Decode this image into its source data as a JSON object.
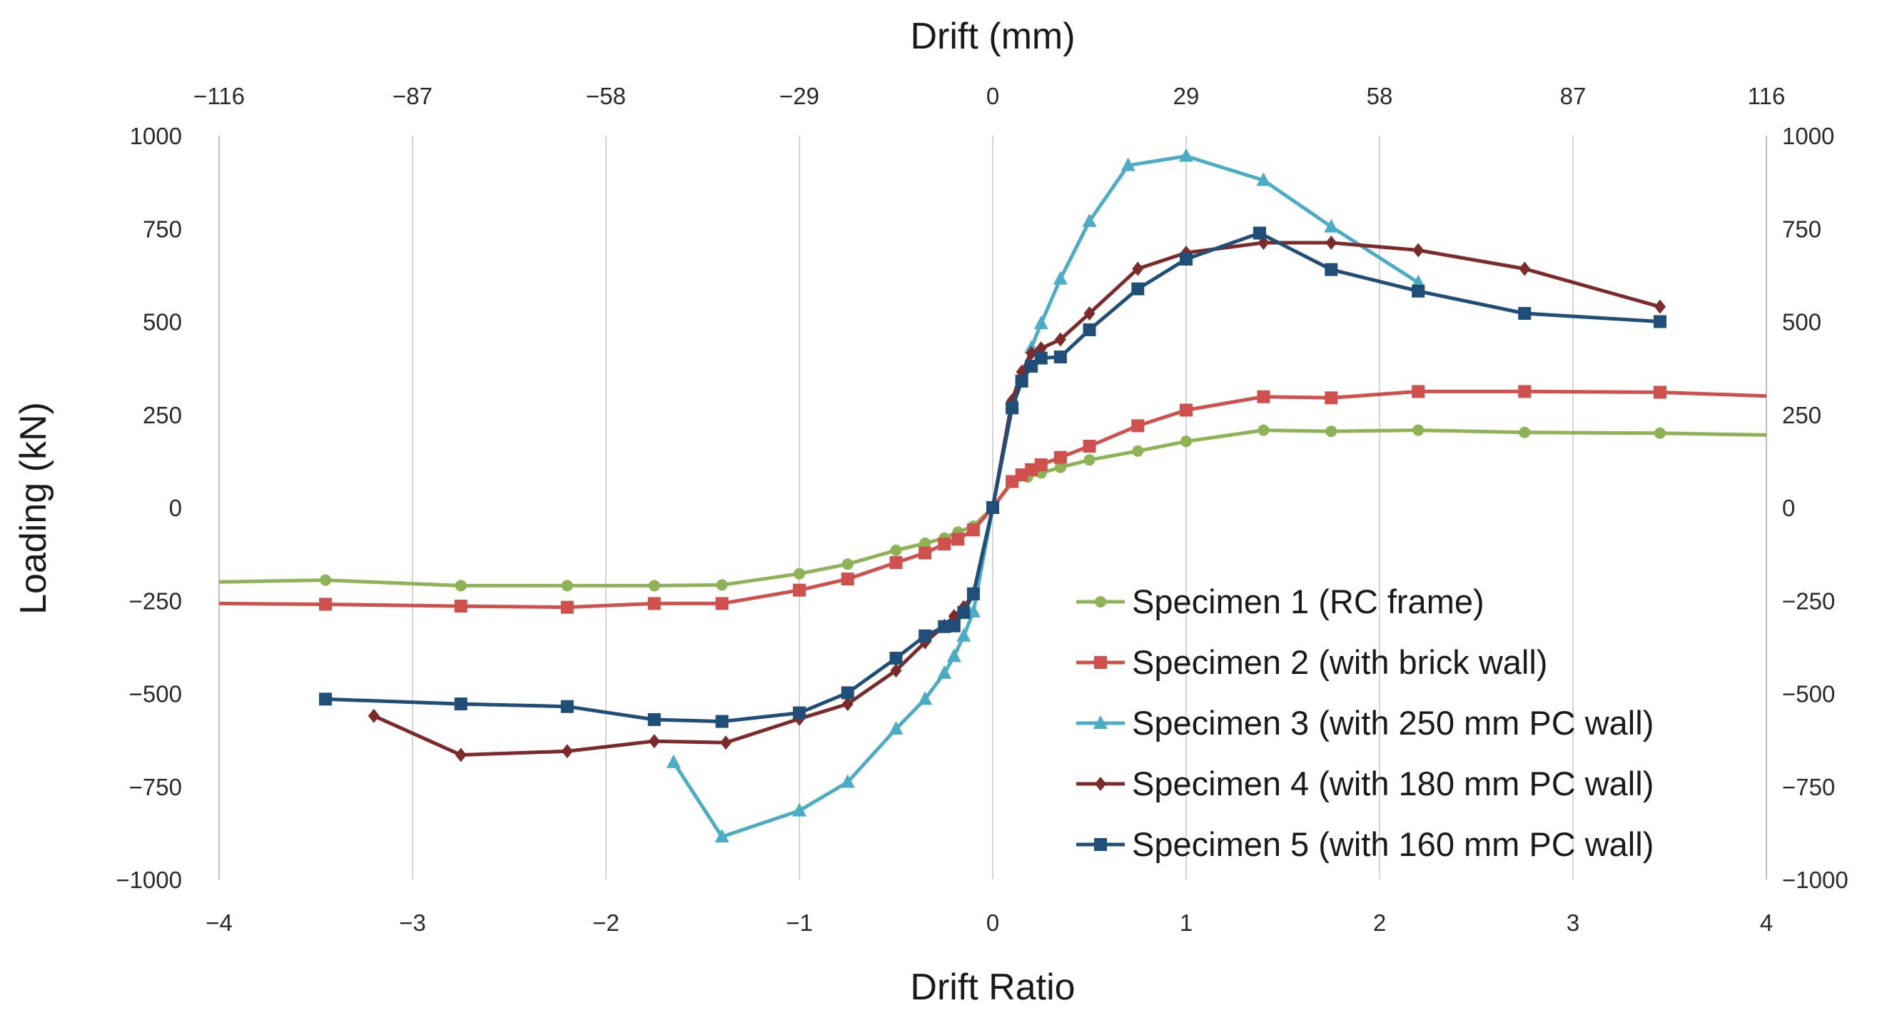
{
  "chart_data": {
    "type": "line",
    "title": "",
    "xlabel": "Drift Ratio",
    "ylabel": "Loading (kN)",
    "x2label": "Drift (mm)",
    "xlim": [
      -4,
      4
    ],
    "ylim": [
      -1000,
      1000
    ],
    "x_ticks": [
      -4,
      -3,
      -2,
      -1,
      0,
      1,
      2,
      3,
      4
    ],
    "x_tick_labels": [
      "−4",
      "−3",
      "−2",
      "−1",
      "0",
      "1",
      "2",
      "3",
      "4"
    ],
    "y_ticks": [
      1000,
      750,
      500,
      250,
      0,
      -250,
      -500,
      -750,
      -1000
    ],
    "y_tick_labels": [
      "1000",
      "750",
      "500",
      "250",
      "0",
      "−250",
      "−500",
      "−750",
      "−1000"
    ],
    "x2_ticks": [
      -116,
      -87,
      -58,
      -29,
      0,
      29,
      58,
      87,
      116
    ],
    "x2_tick_labels": [
      "−116",
      "−87",
      "−58",
      "−29",
      "0",
      "29",
      "58",
      "87",
      "116"
    ],
    "grid": "vertical",
    "legend_position": "bottom-right",
    "series": [
      {
        "name": "Specimen 1 (RC frame)",
        "color": "#8DB356",
        "marker": "circle",
        "show_markers": true,
        "x": [
          -4.0,
          -3.45,
          -2.75,
          -2.2,
          -1.75,
          -1.4,
          -1.0,
          -0.75,
          -0.5,
          -0.35,
          -0.25,
          -0.18,
          -0.1,
          0.0,
          0.1,
          0.18,
          0.25,
          0.35,
          0.5,
          0.75,
          1.0,
          1.4,
          1.75,
          2.2,
          2.75,
          3.45,
          4.0
        ],
        "y": [
          -200,
          -195,
          -210,
          -210,
          -210,
          -208,
          -178,
          -152,
          -115,
          -96,
          -82,
          -66,
          -50,
          0,
          68,
          82,
          93,
          108,
          128,
          152,
          178,
          208,
          205,
          208,
          202,
          200,
          195
        ]
      },
      {
        "name": "Specimen 2 (with brick wall)",
        "color": "#D0504D",
        "marker": "square",
        "show_markers": true,
        "x": [
          -4.0,
          -3.45,
          -2.75,
          -2.2,
          -1.75,
          -1.4,
          -1.0,
          -0.75,
          -0.5,
          -0.35,
          -0.25,
          -0.18,
          -0.1,
          0.0,
          0.1,
          0.15,
          0.2,
          0.25,
          0.35,
          0.5,
          0.75,
          1.0,
          1.4,
          1.75,
          2.2,
          2.75,
          3.45,
          4.0
        ],
        "y": [
          -258,
          -260,
          -265,
          -268,
          -258,
          -258,
          -222,
          -192,
          -148,
          -122,
          -98,
          -85,
          -60,
          0,
          70,
          88,
          102,
          115,
          135,
          165,
          220,
          262,
          298,
          295,
          312,
          312,
          310,
          300
        ]
      },
      {
        "name": "Specimen 3 (with 250 mm PC wall)",
        "color": "#4BACC6",
        "marker": "triangle",
        "show_markers": true,
        "x": [
          -1.65,
          -1.4,
          -1.0,
          -0.75,
          -0.5,
          -0.35,
          -0.25,
          -0.2,
          -0.15,
          -0.1,
          0.0,
          0.1,
          0.15,
          0.2,
          0.25,
          0.35,
          0.5,
          0.7,
          1.0,
          1.4,
          1.75,
          2.2
        ],
        "y": [
          -685,
          -885,
          -815,
          -738,
          -595,
          -515,
          -445,
          -400,
          -345,
          -280,
          0,
          280,
          350,
          430,
          495,
          615,
          770,
          920,
          945,
          880,
          755,
          605
        ]
      },
      {
        "name": "Specimen 4 (with 180 mm PC wall)",
        "color": "#7D2A2A",
        "marker": "diamond",
        "show_markers": true,
        "x": [
          -3.2,
          -2.75,
          -2.2,
          -1.75,
          -1.38,
          -1.0,
          -0.75,
          -0.5,
          -0.35,
          -0.25,
          -0.2,
          -0.15,
          -0.1,
          0.0,
          0.1,
          0.15,
          0.2,
          0.25,
          0.35,
          0.5,
          0.75,
          1.0,
          1.4,
          1.75,
          2.2,
          2.75,
          3.45
        ],
        "y": [
          -560,
          -665,
          -655,
          -628,
          -632,
          -568,
          -528,
          -438,
          -362,
          -318,
          -292,
          -268,
          -232,
          0,
          288,
          365,
          415,
          428,
          452,
          522,
          642,
          685,
          712,
          712,
          692,
          642,
          540
        ]
      },
      {
        "name": "Specimen 5 (with 160 mm PC wall)",
        "color": "#1F4E79",
        "marker": "square",
        "show_markers": true,
        "x": [
          -3.45,
          -2.75,
          -2.2,
          -1.75,
          -1.4,
          -1.0,
          -0.75,
          -0.5,
          -0.35,
          -0.25,
          -0.2,
          -0.15,
          -0.1,
          0.0,
          0.1,
          0.15,
          0.2,
          0.25,
          0.35,
          0.5,
          0.75,
          1.0,
          1.38,
          1.75,
          2.2,
          2.75,
          3.45
        ],
        "y": [
          -515,
          -528,
          -535,
          -570,
          -575,
          -552,
          -498,
          -405,
          -345,
          -320,
          -318,
          -282,
          -232,
          0,
          268,
          340,
          380,
          402,
          405,
          478,
          588,
          668,
          738,
          640,
          582,
          522,
          500
        ]
      }
    ]
  }
}
